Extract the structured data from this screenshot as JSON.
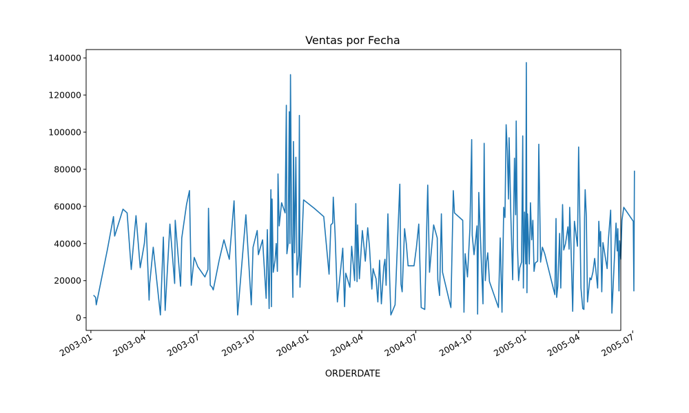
{
  "chart_data": {
    "type": "line",
    "title": "Ventas por Fecha",
    "xlabel": "ORDERDATE",
    "ylabel": "",
    "x_axis_type": "date",
    "xlim": [
      "2002-12-24",
      "2005-06-11"
    ],
    "ylim": [
      -6800,
      144500
    ],
    "grid": false,
    "legend": "none",
    "colors": {
      "line": "#1f77b4",
      "axes": "#000000"
    },
    "x_ticks": [
      {
        "date": "2003-01-01",
        "label": "2003-01"
      },
      {
        "date": "2003-04-01",
        "label": "2003-04"
      },
      {
        "date": "2003-07-01",
        "label": "2003-07"
      },
      {
        "date": "2003-10-01",
        "label": "2003-10"
      },
      {
        "date": "2004-01-01",
        "label": "2004-01"
      },
      {
        "date": "2004-04-01",
        "label": "2004-04"
      },
      {
        "date": "2004-07-01",
        "label": "2004-07"
      },
      {
        "date": "2004-10-01",
        "label": "2004-10"
      },
      {
        "date": "2005-01-01",
        "label": "2005-01"
      },
      {
        "date": "2005-04-01",
        "label": "2005-04"
      },
      {
        "date": "2005-07-01",
        "label": "2005-07"
      }
    ],
    "y_ticks": [
      {
        "value": 0,
        "label": "0"
      },
      {
        "value": 20000,
        "label": "20000"
      },
      {
        "value": 40000,
        "label": "40000"
      },
      {
        "value": 60000,
        "label": "60000"
      },
      {
        "value": 80000,
        "label": "80000"
      },
      {
        "value": 100000,
        "label": "100000"
      },
      {
        "value": 120000,
        "label": "120000"
      },
      {
        "value": 140000,
        "label": "140000"
      }
    ],
    "series": [
      {
        "color": "#1f77b4",
        "points": [
          [
            "2003-01-06",
            12000
          ],
          [
            "2003-01-09",
            11000
          ],
          [
            "2003-01-10",
            7000
          ],
          [
            "2003-01-29",
            37000
          ],
          [
            "2003-02-08",
            54500
          ],
          [
            "2003-02-10",
            44000
          ],
          [
            "2003-02-24",
            58500
          ],
          [
            "2003-03-03",
            56500
          ],
          [
            "2003-03-10",
            26000
          ],
          [
            "2003-03-18",
            55000
          ],
          [
            "2003-03-25",
            27000
          ],
          [
            "2003-04-01",
            40000
          ],
          [
            "2003-04-04",
            51000
          ],
          [
            "2003-04-09",
            9500
          ],
          [
            "2003-04-10",
            18500
          ],
          [
            "2003-04-16",
            38000
          ],
          [
            "2003-04-28",
            1500
          ],
          [
            "2003-05-03",
            43500
          ],
          [
            "2003-05-06",
            4000
          ],
          [
            "2003-05-14",
            50500
          ],
          [
            "2003-05-22",
            18500
          ],
          [
            "2003-05-23",
            52500
          ],
          [
            "2003-06-01",
            17000
          ],
          [
            "2003-06-03",
            43000
          ],
          [
            "2003-06-11",
            61000
          ],
          [
            "2003-06-16",
            68500
          ],
          [
            "2003-06-19",
            17500
          ],
          [
            "2003-06-24",
            32500
          ],
          [
            "2003-06-30",
            27500
          ],
          [
            "2003-07-12",
            22000
          ],
          [
            "2003-07-17",
            26000
          ],
          [
            "2003-07-18",
            59000
          ],
          [
            "2003-07-21",
            17500
          ],
          [
            "2003-07-24",
            16500
          ],
          [
            "2003-07-26",
            15000
          ],
          [
            "2003-08-05",
            31000
          ],
          [
            "2003-08-13",
            42000
          ],
          [
            "2003-08-22",
            31500
          ],
          [
            "2003-08-30",
            63000
          ],
          [
            "2003-09-05",
            1500
          ],
          [
            "2003-09-19",
            55500
          ],
          [
            "2003-09-28",
            7000
          ],
          [
            "2003-10-01",
            38000
          ],
          [
            "2003-10-08",
            47000
          ],
          [
            "2003-10-10",
            34000
          ],
          [
            "2003-10-17",
            42000
          ],
          [
            "2003-10-23",
            10500
          ],
          [
            "2003-10-25",
            47500
          ],
          [
            "2003-10-28",
            5000
          ],
          [
            "2003-10-31",
            69000
          ],
          [
            "2003-11-01",
            6000
          ],
          [
            "2003-11-02",
            64000
          ],
          [
            "2003-11-04",
            24500
          ],
          [
            "2003-11-07",
            31000
          ],
          [
            "2003-11-09",
            40000
          ],
          [
            "2003-11-11",
            25000
          ],
          [
            "2003-11-12",
            77500
          ],
          [
            "2003-11-14",
            49500
          ],
          [
            "2003-11-18",
            62000
          ],
          [
            "2003-11-24",
            56500
          ],
          [
            "2003-11-26",
            114500
          ],
          [
            "2003-11-27",
            34500
          ],
          [
            "2003-11-29",
            40000
          ],
          [
            "2003-12-01",
            111000
          ],
          [
            "2003-12-02",
            40000
          ],
          [
            "2003-12-03",
            131000
          ],
          [
            "2003-12-05",
            45000
          ],
          [
            "2003-12-07",
            11000
          ],
          [
            "2003-12-08",
            95000
          ],
          [
            "2003-12-10",
            35000
          ],
          [
            "2003-12-12",
            86500
          ],
          [
            "2003-12-14",
            23000
          ],
          [
            "2003-12-17",
            34000
          ],
          [
            "2003-12-18",
            109000
          ],
          [
            "2003-12-19",
            16500
          ],
          [
            "2003-12-25",
            63500
          ],
          [
            "2004-01-12",
            59000
          ],
          [
            "2004-01-28",
            54500
          ],
          [
            "2004-02-06",
            23500
          ],
          [
            "2004-02-09",
            50000
          ],
          [
            "2004-02-12",
            51000
          ],
          [
            "2004-02-13",
            65000
          ],
          [
            "2004-02-16",
            45500
          ],
          [
            "2004-02-20",
            8500
          ],
          [
            "2004-02-29",
            37500
          ],
          [
            "2004-03-03",
            6000
          ],
          [
            "2004-03-05",
            24000
          ],
          [
            "2004-03-12",
            16500
          ],
          [
            "2004-03-15",
            38500
          ],
          [
            "2004-03-20",
            20000
          ],
          [
            "2004-03-22",
            61500
          ],
          [
            "2004-03-24",
            19500
          ],
          [
            "2004-03-25",
            50000
          ],
          [
            "2004-03-28",
            21000
          ],
          [
            "2004-04-02",
            47000
          ],
          [
            "2004-04-05",
            37500
          ],
          [
            "2004-04-07",
            30500
          ],
          [
            "2004-04-11",
            48500
          ],
          [
            "2004-04-14",
            38000
          ],
          [
            "2004-04-18",
            15500
          ],
          [
            "2004-04-20",
            26500
          ],
          [
            "2004-04-22",
            24000
          ],
          [
            "2004-04-25",
            21000
          ],
          [
            "2004-04-28",
            8500
          ],
          [
            "2004-05-01",
            31000
          ],
          [
            "2004-05-04",
            7500
          ],
          [
            "2004-05-08",
            27500
          ],
          [
            "2004-05-10",
            31500
          ],
          [
            "2004-05-12",
            17500
          ],
          [
            "2004-05-15",
            56000
          ],
          [
            "2004-05-18",
            20500
          ],
          [
            "2004-05-20",
            1500
          ],
          [
            "2004-05-27",
            7000
          ],
          [
            "2004-05-30",
            31000
          ],
          [
            "2004-06-04",
            72000
          ],
          [
            "2004-06-06",
            18000
          ],
          [
            "2004-06-08",
            14000
          ],
          [
            "2004-06-12",
            48000
          ],
          [
            "2004-06-15",
            40000
          ],
          [
            "2004-06-18",
            28000
          ],
          [
            "2004-06-28",
            28000
          ],
          [
            "2004-07-02",
            38000
          ],
          [
            "2004-07-06",
            50500
          ],
          [
            "2004-07-10",
            5500
          ],
          [
            "2004-07-16",
            4500
          ],
          [
            "2004-07-21",
            71500
          ],
          [
            "2004-07-24",
            24500
          ],
          [
            "2004-07-26",
            32000
          ],
          [
            "2004-07-31",
            50000
          ],
          [
            "2004-08-06",
            43000
          ],
          [
            "2004-08-07",
            20500
          ],
          [
            "2004-08-10",
            12000
          ],
          [
            "2004-08-13",
            56000
          ],
          [
            "2004-08-15",
            24500
          ],
          [
            "2004-08-29",
            5500
          ],
          [
            "2004-09-02",
            68500
          ],
          [
            "2004-09-04",
            56500
          ],
          [
            "2004-09-18",
            52500
          ],
          [
            "2004-09-20",
            3000
          ],
          [
            "2004-09-22",
            34500
          ],
          [
            "2004-09-26",
            22000
          ],
          [
            "2004-09-30",
            48000
          ],
          [
            "2004-10-03",
            96000
          ],
          [
            "2004-10-04",
            44500
          ],
          [
            "2004-10-07",
            34000
          ],
          [
            "2004-10-10",
            43000
          ],
          [
            "2004-10-12",
            49500
          ],
          [
            "2004-10-13",
            2000
          ],
          [
            "2004-10-15",
            67500
          ],
          [
            "2004-10-18",
            41000
          ],
          [
            "2004-10-22",
            7500
          ],
          [
            "2004-10-24",
            94000
          ],
          [
            "2004-10-26",
            20000
          ],
          [
            "2004-10-28",
            30000
          ],
          [
            "2004-10-30",
            35000
          ],
          [
            "2004-11-02",
            19500
          ],
          [
            "2004-11-17",
            5500
          ],
          [
            "2004-11-20",
            43000
          ],
          [
            "2004-11-23",
            3000
          ],
          [
            "2004-11-26",
            59500
          ],
          [
            "2004-11-28",
            54000
          ],
          [
            "2004-11-30",
            104000
          ],
          [
            "2004-12-02",
            90000
          ],
          [
            "2004-12-04",
            64000
          ],
          [
            "2004-12-05",
            97000
          ],
          [
            "2004-12-08",
            54000
          ],
          [
            "2004-12-11",
            20500
          ],
          [
            "2004-12-14",
            86000
          ],
          [
            "2004-12-16",
            55500
          ],
          [
            "2004-12-17",
            106000
          ],
          [
            "2004-12-19",
            38500
          ],
          [
            "2004-12-21",
            20000
          ],
          [
            "2004-12-23",
            27000
          ],
          [
            "2004-12-26",
            30000
          ],
          [
            "2004-12-28",
            98000
          ],
          [
            "2004-12-29",
            16000
          ],
          [
            "2004-12-31",
            57000
          ],
          [
            "2005-01-02",
            29000
          ],
          [
            "2005-01-03",
            137500
          ],
          [
            "2005-01-04",
            13500
          ],
          [
            "2005-01-05",
            56000
          ],
          [
            "2005-01-07",
            38000
          ],
          [
            "2005-01-08",
            29000
          ],
          [
            "2005-01-10",
            62000
          ],
          [
            "2005-01-12",
            42000
          ],
          [
            "2005-01-14",
            52500
          ],
          [
            "2005-01-16",
            25000
          ],
          [
            "2005-01-18",
            29500
          ],
          [
            "2005-01-22",
            30500
          ],
          [
            "2005-01-24",
            93500
          ],
          [
            "2005-01-27",
            30000
          ],
          [
            "2005-01-30",
            38000
          ],
          [
            "2005-02-03",
            34500
          ],
          [
            "2005-02-20",
            12500
          ],
          [
            "2005-02-22",
            53500
          ],
          [
            "2005-02-23",
            11000
          ],
          [
            "2005-02-25",
            17000
          ],
          [
            "2005-02-28",
            45500
          ],
          [
            "2005-03-02",
            16000
          ],
          [
            "2005-03-05",
            61000
          ],
          [
            "2005-03-07",
            36500
          ],
          [
            "2005-03-10",
            40000
          ],
          [
            "2005-03-14",
            49000
          ],
          [
            "2005-03-16",
            37000
          ],
          [
            "2005-03-17",
            59500
          ],
          [
            "2005-03-19",
            40000
          ],
          [
            "2005-03-22",
            3500
          ],
          [
            "2005-03-25",
            52000
          ],
          [
            "2005-03-30",
            38500
          ],
          [
            "2005-04-01",
            92000
          ],
          [
            "2005-04-03",
            55000
          ],
          [
            "2005-04-05",
            16000
          ],
          [
            "2005-04-08",
            5000
          ],
          [
            "2005-04-10",
            4500
          ],
          [
            "2005-04-11",
            53500
          ],
          [
            "2005-04-12",
            69000
          ],
          [
            "2005-04-14",
            54500
          ],
          [
            "2005-04-16",
            8500
          ],
          [
            "2005-04-20",
            21500
          ],
          [
            "2005-04-22",
            20500
          ],
          [
            "2005-04-25",
            24500
          ],
          [
            "2005-04-28",
            32000
          ],
          [
            "2005-05-03",
            16000
          ],
          [
            "2005-05-05",
            52000
          ],
          [
            "2005-05-07",
            38500
          ],
          [
            "2005-05-08",
            46500
          ],
          [
            "2005-05-10",
            14000
          ],
          [
            "2005-05-12",
            40500
          ],
          [
            "2005-05-19",
            26500
          ],
          [
            "2005-05-21",
            41500
          ],
          [
            "2005-05-25",
            58000
          ],
          [
            "2005-05-27",
            2500
          ],
          [
            "2005-06-03",
            51000
          ],
          [
            "2005-06-05",
            36000
          ],
          [
            "2005-06-06",
            48000
          ],
          [
            "2005-06-07",
            32000
          ],
          [
            "2005-06-08",
            14500
          ],
          [
            "2005-06-09",
            41500
          ],
          [
            "2005-06-11",
            31500
          ],
          [
            "2005-06-13",
            52500
          ],
          [
            "2005-06-16",
            59500
          ],
          [
            "2005-07-02",
            52000
          ],
          [
            "2005-07-03",
            14500
          ],
          [
            "2005-07-04",
            79000
          ]
        ]
      }
    ]
  }
}
